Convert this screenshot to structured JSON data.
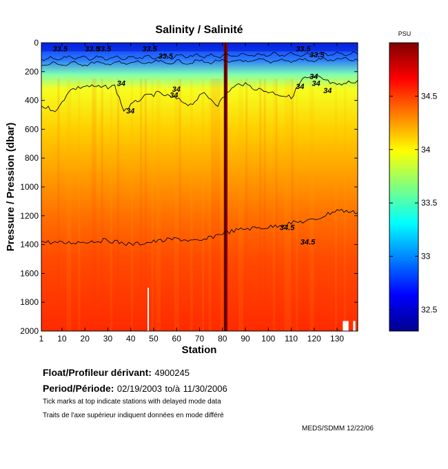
{
  "chart_data": {
    "type": "heatmap",
    "title": "Salinity / Salinité",
    "xlabel": "Station",
    "ylabel": "Pressure / Pression (dbar)",
    "xlim": [
      1,
      139
    ],
    "ylim": [
      0,
      2000
    ],
    "y_reversed": true,
    "xticks": [
      1,
      10,
      20,
      30,
      40,
      50,
      60,
      70,
      80,
      90,
      100,
      110,
      120,
      130
    ],
    "yticks": [
      0,
      200,
      400,
      600,
      800,
      1000,
      1200,
      1400,
      1600,
      1800,
      2000
    ],
    "colorbar": {
      "unit": "PSU",
      "range": [
        32.3,
        35.0
      ],
      "ticks": [
        32.5,
        33,
        33.5,
        34,
        34.5
      ],
      "colormap": "jet"
    },
    "contours": [
      {
        "level": 33.5,
        "labels": [
          "33.5",
          "33.5",
          "33.5",
          "33.5",
          "33.5",
          "33.5"
        ]
      },
      {
        "level": 34,
        "labels": [
          "34",
          "34",
          "34",
          "34",
          "34",
          "34",
          "34",
          "34"
        ],
        "depth_profile": [
          [
            1,
            440
          ],
          [
            8,
            470
          ],
          [
            13,
            330
          ],
          [
            20,
            300
          ],
          [
            28,
            310
          ],
          [
            33,
            300
          ],
          [
            37,
            470
          ],
          [
            45,
            380
          ],
          [
            52,
            350
          ],
          [
            60,
            390
          ],
          [
            66,
            430
          ],
          [
            72,
            350
          ],
          [
            78,
            430
          ],
          [
            83,
            330
          ],
          [
            88,
            280
          ],
          [
            95,
            320
          ],
          [
            103,
            350
          ],
          [
            110,
            380
          ],
          [
            115,
            250
          ],
          [
            122,
            240
          ],
          [
            130,
            300
          ],
          [
            139,
            260
          ]
        ]
      },
      {
        "level": 34.5,
        "labels": [
          "34.5",
          "34.5"
        ],
        "depth_profile": [
          [
            1,
            1380
          ],
          [
            10,
            1390
          ],
          [
            20,
            1380
          ],
          [
            30,
            1370
          ],
          [
            40,
            1400
          ],
          [
            50,
            1380
          ],
          [
            60,
            1360
          ],
          [
            70,
            1380
          ],
          [
            80,
            1320
          ],
          [
            90,
            1290
          ],
          [
            100,
            1280
          ],
          [
            110,
            1250
          ],
          [
            120,
            1230
          ],
          [
            130,
            1160
          ],
          [
            139,
            1180
          ]
        ]
      }
    ],
    "annotations": [
      "34",
      "34.5"
    ],
    "colors": {
      "low": "#00008f",
      "mid": "#ffff00",
      "high": "#7f0000",
      "contour": "#000000"
    }
  },
  "footer": {
    "float_label": "Float/Profileur dérivant:",
    "float_id": "4900245",
    "period_label": "Period/Période:",
    "period_start": "02/19/2003",
    "period_to": "to/à",
    "period_end": "11/30/2006",
    "note_en": "Tick marks at top indicate stations with delayed mode data",
    "note_fr": "Traits de l'axe supérieur indiquent données en mode différé",
    "credit": "MEDS/SDMM  12/22/06"
  }
}
